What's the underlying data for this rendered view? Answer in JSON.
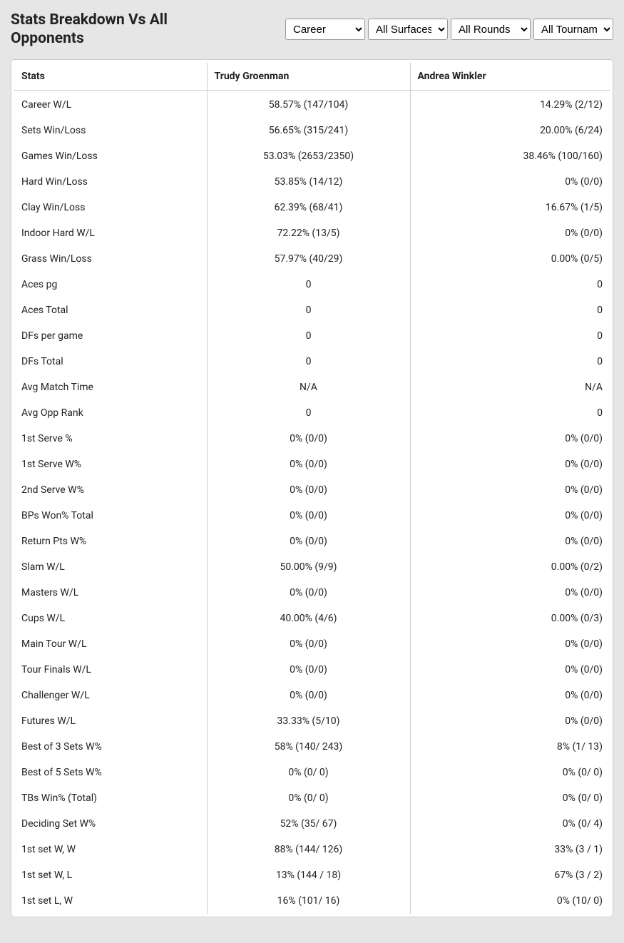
{
  "title": "Stats Breakdown Vs All Opponents",
  "filters": {
    "period": "Career",
    "surface": "All Surfaces",
    "rounds": "All Rounds",
    "tournaments": "All Tournaments"
  },
  "table": {
    "headers": {
      "col1": "Stats",
      "col2": "Trudy Groenman",
      "col3": "Andrea Winkler"
    },
    "rows": [
      {
        "stat": "Career W/L",
        "p1": "58.57% (147/104)",
        "p2": "14.29% (2/12)"
      },
      {
        "stat": "Sets Win/Loss",
        "p1": "56.65% (315/241)",
        "p2": "20.00% (6/24)"
      },
      {
        "stat": "Games Win/Loss",
        "p1": "53.03% (2653/2350)",
        "p2": "38.46% (100/160)"
      },
      {
        "stat": "Hard Win/Loss",
        "p1": "53.85% (14/12)",
        "p2": "0% (0/0)"
      },
      {
        "stat": "Clay Win/Loss",
        "p1": "62.39% (68/41)",
        "p2": "16.67% (1/5)"
      },
      {
        "stat": "Indoor Hard W/L",
        "p1": "72.22% (13/5)",
        "p2": "0% (0/0)"
      },
      {
        "stat": "Grass Win/Loss",
        "p1": "57.97% (40/29)",
        "p2": "0.00% (0/5)"
      },
      {
        "stat": "Aces pg",
        "p1": "0",
        "p2": "0"
      },
      {
        "stat": "Aces Total",
        "p1": "0",
        "p2": "0"
      },
      {
        "stat": "DFs per game",
        "p1": "0",
        "p2": "0"
      },
      {
        "stat": "DFs Total",
        "p1": "0",
        "p2": "0"
      },
      {
        "stat": "Avg Match Time",
        "p1": "N/A",
        "p2": "N/A"
      },
      {
        "stat": "Avg Opp Rank",
        "p1": "0",
        "p2": "0"
      },
      {
        "stat": "1st Serve %",
        "p1": "0% (0/0)",
        "p2": "0% (0/0)"
      },
      {
        "stat": "1st Serve W%",
        "p1": "0% (0/0)",
        "p2": "0% (0/0)"
      },
      {
        "stat": "2nd Serve W%",
        "p1": "0% (0/0)",
        "p2": "0% (0/0)"
      },
      {
        "stat": "BPs Won% Total",
        "p1": "0% (0/0)",
        "p2": "0% (0/0)"
      },
      {
        "stat": "Return Pts W%",
        "p1": "0% (0/0)",
        "p2": "0% (0/0)"
      },
      {
        "stat": "Slam W/L",
        "p1": "50.00% (9/9)",
        "p2": "0.00% (0/2)"
      },
      {
        "stat": "Masters W/L",
        "p1": "0% (0/0)",
        "p2": "0% (0/0)"
      },
      {
        "stat": "Cups W/L",
        "p1": "40.00% (4/6)",
        "p2": "0.00% (0/3)"
      },
      {
        "stat": "Main Tour W/L",
        "p1": "0% (0/0)",
        "p2": "0% (0/0)"
      },
      {
        "stat": "Tour Finals W/L",
        "p1": "0% (0/0)",
        "p2": "0% (0/0)"
      },
      {
        "stat": "Challenger W/L",
        "p1": "0% (0/0)",
        "p2": "0% (0/0)"
      },
      {
        "stat": "Futures W/L",
        "p1": "33.33% (5/10)",
        "p2": "0% (0/0)"
      },
      {
        "stat": "Best of 3 Sets W%",
        "p1": "58% (140/ 243)",
        "p2": "8% (1/ 13)"
      },
      {
        "stat": "Best of 5 Sets W%",
        "p1": "0% (0/ 0)",
        "p2": "0% (0/ 0)"
      },
      {
        "stat": "TBs Win% (Total)",
        "p1": "0% (0/ 0)",
        "p2": "0% (0/ 0)"
      },
      {
        "stat": "Deciding Set W%",
        "p1": "52% (35/ 67)",
        "p2": "0% (0/ 4)"
      },
      {
        "stat": "1st set W, W",
        "p1": "88% (144/ 126)",
        "p2": "33% (3 / 1)"
      },
      {
        "stat": "1st set W, L",
        "p1": "13% (144 / 18)",
        "p2": "67% (3 / 2)"
      },
      {
        "stat": "1st set L, W",
        "p1": "16% (101/ 16)",
        "p2": "0% (10/ 0)"
      }
    ]
  }
}
